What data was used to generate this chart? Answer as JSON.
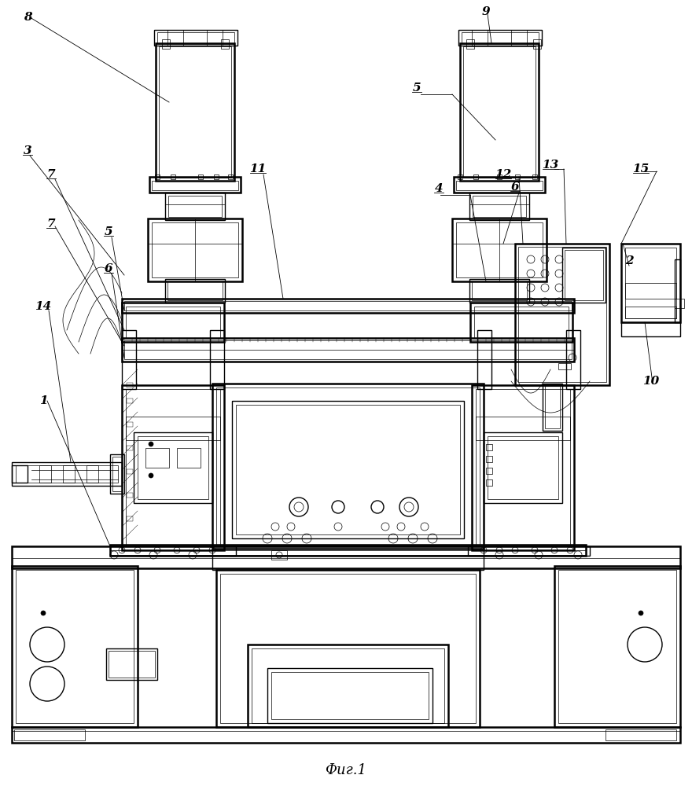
{
  "title": "Фиг.1",
  "title_fontsize": 13,
  "bg_color": "#ffffff",
  "lc": "#000000",
  "lw_main": 1.0,
  "lw_thin": 0.5,
  "lw_thick": 1.8,
  "lw_ultra": 0.3
}
